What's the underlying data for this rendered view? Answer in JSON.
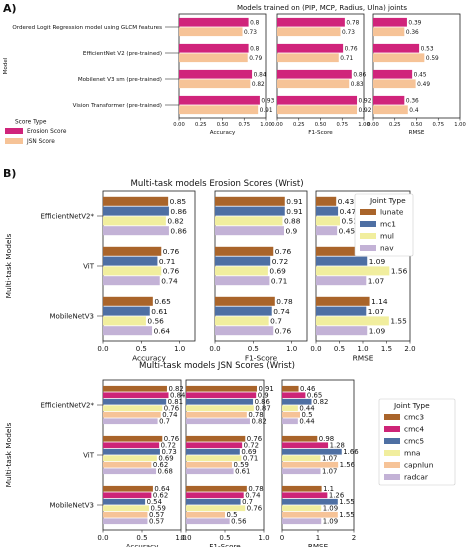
{
  "sections": {
    "a": {
      "label": "A)"
    },
    "b": {
      "label": "B)"
    }
  },
  "colors": {
    "erosion": "#d0247b",
    "jsn": "#f6c397",
    "lunate": "#a9642a",
    "mc1": "#4e6fa3",
    "mul": "#f1ee9e",
    "nav": "#c3b2d6",
    "cmc3": "#a9642a",
    "cmc4": "#cd2477",
    "cmc5": "#4e6fa3",
    "mna": "#f1ee9e",
    "capnlun": "#f6c397",
    "radcar": "#c3b2d6"
  },
  "chart_data": [
    {
      "id": "A",
      "type": "bar",
      "orientation": "horizontal",
      "title": "Models trained on (PIP, MCP, Radius, Ulna) joints",
      "ylabel": "Model",
      "categories": [
        "Ordered Logit Regression model using GLCM features",
        "EfficientNet V2 (pre-trained)",
        "Mobilenet V3 sm (pre-trained)",
        "Vision Transformer (pre-trained)"
      ],
      "legend": {
        "title": "Score Type",
        "placement": "left",
        "entries": [
          "Erosion Score",
          "JSN Score"
        ]
      },
      "series_keys": [
        "erosion",
        "jsn"
      ],
      "panels": [
        {
          "xlabel": "Accuracy",
          "xlim": [
            0,
            1
          ],
          "ticks": [
            "0.00",
            "0.25",
            "0.50",
            "0.75",
            "1.00"
          ],
          "series": [
            {
              "name": "Erosion Score",
              "values": [
                0.8,
                0.8,
                0.84,
                0.93
              ]
            },
            {
              "name": "JSN Score",
              "values": [
                0.73,
                0.79,
                0.82,
                0.91
              ]
            }
          ]
        },
        {
          "xlabel": "F1-Score",
          "xlim": [
            0,
            1
          ],
          "ticks": [
            "0.00",
            "0.25",
            "0.50",
            "0.75",
            "1.00"
          ],
          "series": [
            {
              "name": "Erosion Score",
              "values": [
                0.78,
                0.76,
                0.86,
                0.92
              ]
            },
            {
              "name": "JSN Score",
              "values": [
                0.73,
                0.71,
                0.83,
                0.92
              ]
            }
          ]
        },
        {
          "xlabel": "RMSE",
          "xlim": [
            0,
            1
          ],
          "ticks": [
            "0.00",
            "0.25",
            "0.50",
            "0.75",
            "1.00"
          ],
          "series": [
            {
              "name": "Erosion Score",
              "values": [
                0.39,
                0.53,
                0.45,
                0.36
              ]
            },
            {
              "name": "JSN Score",
              "values": [
                0.36,
                0.59,
                0.49,
                0.4
              ]
            }
          ]
        }
      ]
    },
    {
      "id": "B1",
      "type": "bar",
      "orientation": "horizontal",
      "title": "Multi-task models Erosion Scores (Wrist)",
      "ylabel": "Multi-task Models",
      "categories": [
        "EfficientNetV2*",
        "ViT",
        "MobileNetV3"
      ],
      "legend": {
        "title": "Joint Type",
        "placement": "right",
        "entries": [
          "lunate",
          "mc1",
          "mul",
          "nav"
        ]
      },
      "series_keys": [
        "lunate",
        "mc1",
        "mul",
        "nav"
      ],
      "panels": [
        {
          "xlabel": "Accuracy",
          "xlim": [
            0,
            1.2
          ],
          "ticks": [
            "0.0",
            "0.5",
            "1.0"
          ],
          "series": [
            {
              "name": "lunate",
              "values": [
                0.85,
                0.76,
                0.65
              ]
            },
            {
              "name": "mc1",
              "values": [
                0.86,
                0.71,
                0.61
              ]
            },
            {
              "name": "mul",
              "values": [
                0.82,
                0.76,
                0.56
              ]
            },
            {
              "name": "nav",
              "values": [
                0.86,
                0.74,
                0.64
              ]
            }
          ]
        },
        {
          "xlabel": "F1-Score",
          "xlim": [
            0,
            1.2
          ],
          "ticks": [
            "0.0",
            "0.5",
            "1.0"
          ],
          "series": [
            {
              "name": "lunate",
              "values": [
                0.91,
                0.76,
                0.78
              ]
            },
            {
              "name": "mc1",
              "values": [
                0.91,
                0.72,
                0.74
              ]
            },
            {
              "name": "mul",
              "values": [
                0.88,
                0.69,
                0.7
              ]
            },
            {
              "name": "nav",
              "values": [
                0.9,
                0.71,
                0.76
              ]
            }
          ]
        },
        {
          "xlabel": "RMSE",
          "xlim": [
            0,
            2
          ],
          "ticks": [
            "0.0",
            "0.5",
            "1.0",
            "1.5",
            "2.0"
          ],
          "series": [
            {
              "name": "lunate",
              "values": [
                0.43,
                0.97,
                1.14
              ]
            },
            {
              "name": "mc1",
              "values": [
                0.47,
                1.09,
                1.07
              ]
            },
            {
              "name": "mul",
              "values": [
                0.51,
                1.56,
                1.55
              ]
            },
            {
              "name": "nav",
              "values": [
                0.45,
                1.07,
                1.09
              ]
            }
          ]
        }
      ]
    },
    {
      "id": "B2",
      "type": "bar",
      "orientation": "horizontal",
      "title": "Multi-task models JSN Scores (Wrist)",
      "ylabel": "Multi-task Models",
      "categories": [
        "EfficientNetV2*",
        "ViT",
        "MobileNetV3"
      ],
      "legend": {
        "title": "Joint Type",
        "placement": "right",
        "entries": [
          "cmc3",
          "cmc4",
          "cmc5",
          "mna",
          "capnlun",
          "radcar"
        ]
      },
      "series_keys": [
        "cmc3",
        "cmc4",
        "cmc5",
        "mna",
        "capnlun",
        "radcar"
      ],
      "panels": [
        {
          "xlabel": "Accuracy",
          "xlim": [
            0,
            1.0
          ],
          "ticks": [
            "0.0",
            "0.5",
            "1.0"
          ],
          "series": [
            {
              "name": "cmc3",
              "values": [
                0.82,
                0.76,
                0.64
              ]
            },
            {
              "name": "cmc4",
              "values": [
                0.84,
                0.72,
                0.62
              ]
            },
            {
              "name": "cmc5",
              "values": [
                0.81,
                0.73,
                0.54
              ]
            },
            {
              "name": "mna",
              "values": [
                0.76,
                0.69,
                0.59
              ]
            },
            {
              "name": "capnlun",
              "values": [
                0.74,
                0.62,
                0.57
              ]
            },
            {
              "name": "radcar",
              "values": [
                0.7,
                0.68,
                0.57
              ]
            }
          ]
        },
        {
          "xlabel": "F1-Score",
          "xlim": [
            0,
            1.0
          ],
          "ticks": [
            "0.0",
            "0.5",
            "1.0"
          ],
          "series": [
            {
              "name": "cmc3",
              "values": [
                0.91,
                0.76,
                0.78
              ]
            },
            {
              "name": "cmc4",
              "values": [
                0.9,
                0.72,
                0.74
              ]
            },
            {
              "name": "cmc5",
              "values": [
                0.86,
                0.69,
                0.7
              ]
            },
            {
              "name": "mna",
              "values": [
                0.87,
                0.71,
                0.76
              ]
            },
            {
              "name": "capnlun",
              "values": [
                0.78,
                0.59,
                0.5
              ]
            },
            {
              "name": "radcar",
              "values": [
                0.82,
                0.61,
                0.56
              ]
            }
          ]
        },
        {
          "xlabel": "RMSE",
          "xlim": [
            0,
            2
          ],
          "ticks": [
            "0",
            "1",
            "2"
          ],
          "series": [
            {
              "name": "cmc3",
              "values": [
                0.46,
                0.98,
                1.1
              ]
            },
            {
              "name": "cmc4",
              "values": [
                0.65,
                1.28,
                1.26
              ]
            },
            {
              "name": "cmc5",
              "values": [
                0.82,
                1.66,
                1.55
              ]
            },
            {
              "name": "mna",
              "values": [
                0.44,
                1.07,
                1.09
              ]
            },
            {
              "name": "capnlun",
              "values": [
                0.5,
                1.56,
                1.55
              ]
            },
            {
              "name": "radcar",
              "values": [
                0.44,
                1.07,
                1.09
              ]
            }
          ]
        }
      ]
    }
  ]
}
